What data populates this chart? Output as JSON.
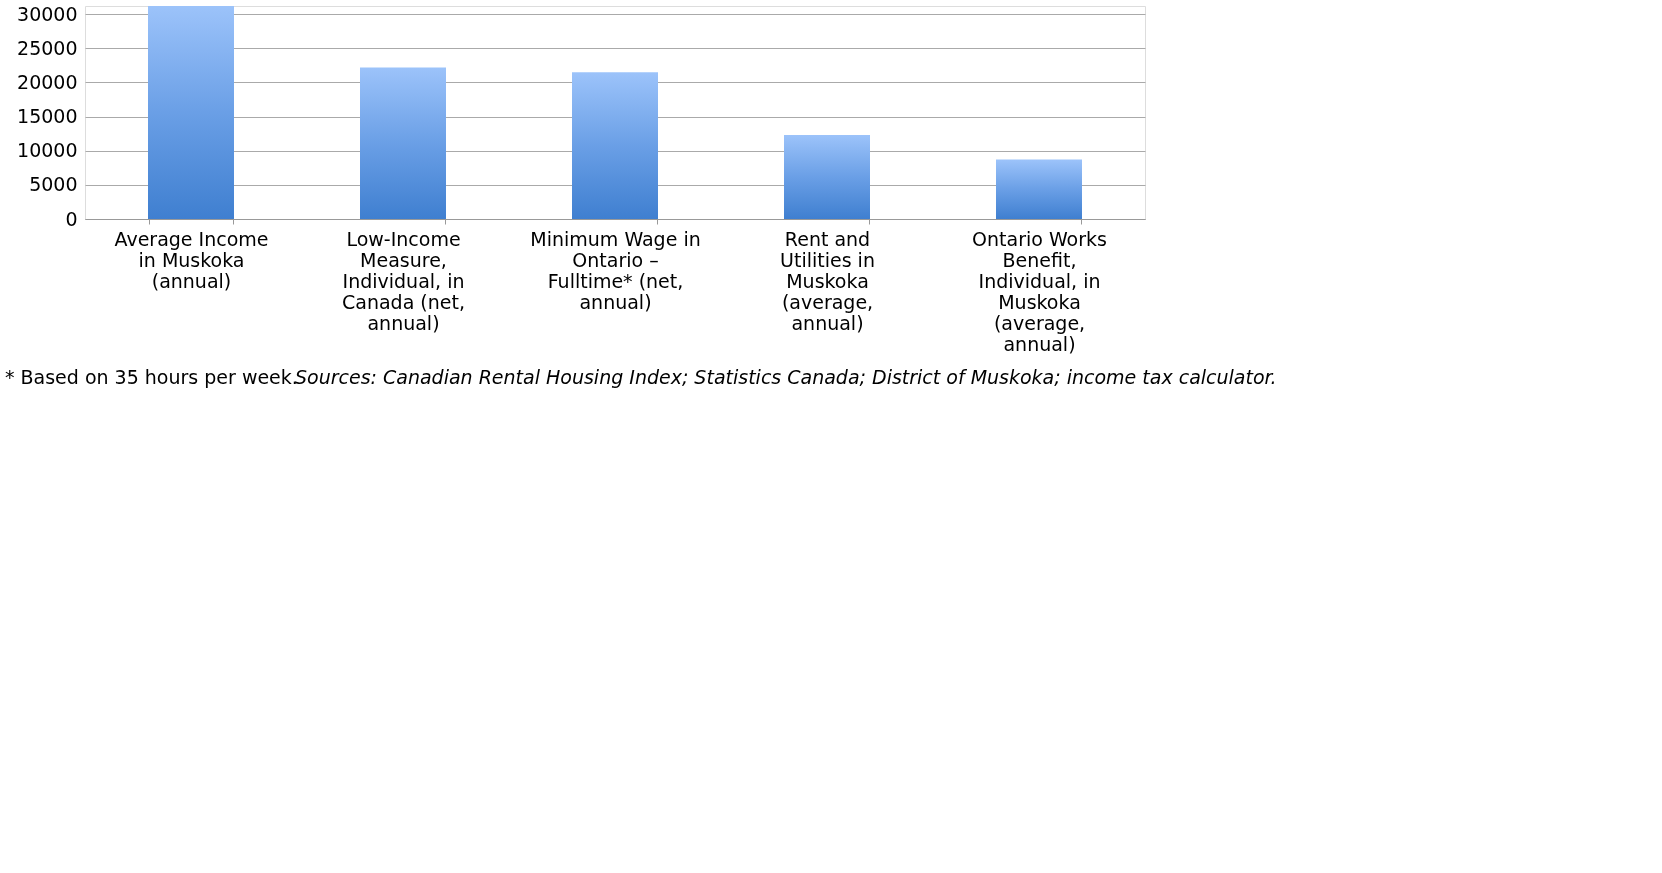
{
  "chart_data": {
    "type": "bar",
    "categories": [
      "Average Income in Muskoka (annual)",
      "Low-Income Measure, Individual, in Canada (net, annual)",
      "Minimum Wage in Ontario – Fulltime* (net, annual)",
      "Rent and Utilities in Muskoka (average, annual)",
      "Ontario Works Benefit, Individual, in Muskoka (average, annual)"
    ],
    "values": [
      31200,
      22200,
      21500,
      12300,
      8700
    ],
    "color": "#6a9fe6",
    "ylim": [
      0,
      31200
    ],
    "yticks": [
      0,
      5000,
      10000,
      15000,
      20000,
      25000,
      30000
    ],
    "grid": "y",
    "annotations": [
      "* Based on 35 hours per week.",
      "Sources: Canadian Rental Housing Index; Statistics Canada; District of Muskoka; income tax calculator."
    ]
  }
}
